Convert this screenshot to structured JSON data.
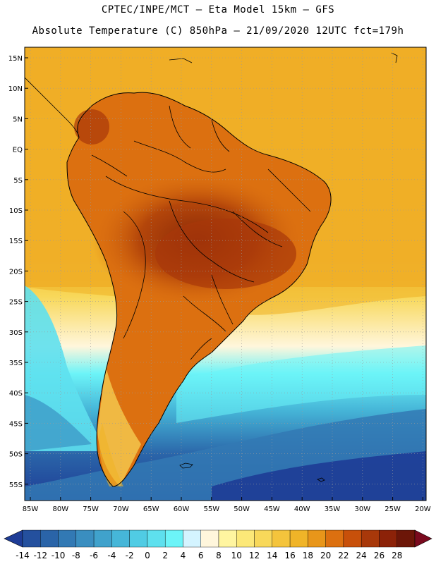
{
  "header": {
    "line1": "CPTEC/INPE/MCT — Eta Model 15km — GFS",
    "line2": "Absolute Temperature (C) 850hPa — 21/09/2020 12UTC fct=179h"
  },
  "map": {
    "lat_ticks": [
      "15N",
      "10N",
      "5N",
      "EQ",
      "5S",
      "10S",
      "15S",
      "20S",
      "25S",
      "30S",
      "35S",
      "40S",
      "45S",
      "50S",
      "55S"
    ],
    "lon_ticks": [
      "85W",
      "80W",
      "75W",
      "70W",
      "65W",
      "60W",
      "55W",
      "50W",
      "45W",
      "40W",
      "35W",
      "30W",
      "25W",
      "20W"
    ],
    "colors": {
      "ocean_warm": "#f0b428",
      "land_hot": "#b4460a",
      "border": "#000000",
      "grid": "#b0b0b0"
    }
  },
  "colorbar": {
    "labels": [
      "-14",
      "-12",
      "-10",
      "-8",
      "-6",
      "-4",
      "-2",
      "0",
      "2",
      "4",
      "6",
      "8",
      "10",
      "12",
      "14",
      "16",
      "18",
      "20",
      "22",
      "24",
      "26",
      "28"
    ],
    "colors": [
      "#1e3c96",
      "#24509e",
      "#2a64a8",
      "#3279b4",
      "#3a8ec0",
      "#40a2cc",
      "#46b6d8",
      "#50cce4",
      "#5ee0ee",
      "#6cf4f8",
      "#d4f4ff",
      "#fff6dc",
      "#fff5a0",
      "#fce878",
      "#f8d85a",
      "#f4c43c",
      "#f0b428",
      "#e8961a",
      "#dc7010",
      "#c8500a",
      "#a8380a",
      "#8c2208",
      "#6c1608",
      "#7a0a1e"
    ]
  }
}
